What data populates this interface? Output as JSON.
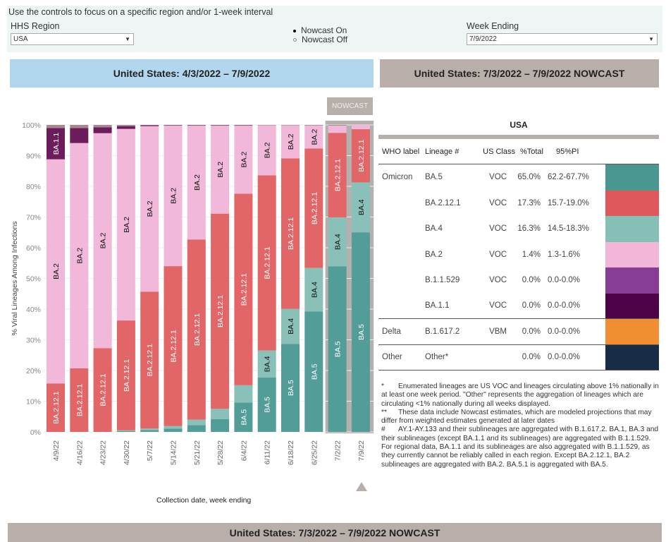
{
  "controls": {
    "intro": "Use the controls to focus on a specific region and/or 1-week interval",
    "region_label": "HHS Region",
    "region_value": "USA",
    "week_label": "Week Ending",
    "week_value": "7/9/2022",
    "nowcast_options": [
      {
        "label": "Nowcast On",
        "selected": true
      },
      {
        "label": "Nowcast Off",
        "selected": false
      }
    ]
  },
  "banners": {
    "left": "United States: 4/3/2022 – 7/9/2022",
    "right": "United States: 7/3/2022 – 7/9/2022 NOWCAST",
    "bottom": "United States: 7/3/2022 – 7/9/2022 NOWCAST"
  },
  "nowcast_tag": "NOWCAST",
  "chart_data": {
    "type": "bar",
    "stacked": true,
    "title": "United States: 4/3/2022 – 7/9/2022",
    "xlabel": "Collection date, week ending",
    "ylabel": "% Viral Lineages Among Infections",
    "ylim": [
      0,
      100
    ],
    "yticks": [
      "0%",
      "10%",
      "20%",
      "30%",
      "40%",
      "50%",
      "60%",
      "70%",
      "80%",
      "90%",
      "100%"
    ],
    "categories": [
      "4/9/22",
      "4/16/22",
      "4/23/22",
      "4/30/22",
      "5/7/22",
      "5/14/22",
      "5/21/22",
      "5/28/22",
      "6/4/22",
      "6/11/22",
      "6/18/22",
      "6/25/22",
      "7/2/22",
      "7/9/22"
    ],
    "nowcast_categories": [
      "7/2/22",
      "7/9/22"
    ],
    "series": [
      {
        "name": "BA.5",
        "color": "#529d98",
        "label_color": "#ffffff",
        "values": [
          0,
          0,
          0,
          0.3,
          0.6,
          1.1,
          2.2,
          4.2,
          9.6,
          17.7,
          28.7,
          39.2,
          53.9,
          65.0
        ]
      },
      {
        "name": "BA.4",
        "color": "#89c0b7",
        "label_color": "#111111",
        "values": [
          0,
          0,
          0,
          0.2,
          0.5,
          0.8,
          1.8,
          3.3,
          5.6,
          8.8,
          11.4,
          14.2,
          16.0,
          16.3
        ]
      },
      {
        "name": "BA.2.12.1",
        "color": "#e26568",
        "label_color": "#ffffff",
        "values": [
          15.8,
          20.7,
          27.3,
          35.8,
          44.6,
          52.1,
          58.7,
          63.6,
          62.4,
          57.1,
          49.0,
          38.9,
          27.5,
          17.3
        ]
      },
      {
        "name": "BA.2",
        "color": "#f1b8d9",
        "label_color": "#111111",
        "values": [
          73.0,
          73.4,
          70.0,
          62.4,
          53.9,
          45.8,
          37.1,
          28.7,
          22.2,
          16.3,
          10.8,
          7.5,
          2.4,
          1.4
        ]
      },
      {
        "name": "BA.1.1",
        "color": "#6c1c5b",
        "label_color": "#ffffff",
        "values": [
          10.2,
          4.9,
          1.9,
          0.9,
          0.3,
          0.1,
          0.1,
          0.1,
          0.1,
          0.0,
          0.0,
          0.0,
          0.0,
          0.0
        ]
      },
      {
        "name": "Other",
        "color": "#a7888c",
        "label_color": "#ffffff",
        "values": [
          1.0,
          1.0,
          0.8,
          0.4,
          0.1,
          0.1,
          0.1,
          0.1,
          0.1,
          0.1,
          0.1,
          0.2,
          0.2,
          0.0
        ]
      }
    ],
    "grid": true,
    "legend": "none"
  },
  "table": {
    "title": "USA",
    "headers": [
      "WHO label",
      "Lineage #",
      "US Class",
      "%Total",
      "95%PI"
    ],
    "rows": [
      {
        "who": "Omicron",
        "lineage": "BA.5",
        "class": "VOC",
        "total": "65.0%",
        "pi": "62.2-67.7%",
        "color": "#4a9792",
        "group_end": false
      },
      {
        "who": "",
        "lineage": "BA.2.12.1",
        "class": "VOC",
        "total": "17.3%",
        "pi": "15.7-19.0%",
        "color": "#e0575c",
        "group_end": false
      },
      {
        "who": "",
        "lineage": "BA.4",
        "class": "VOC",
        "total": "16.3%",
        "pi": "14.5-18.3%",
        "color": "#86bfb6",
        "group_end": false
      },
      {
        "who": "",
        "lineage": "BA.2",
        "class": "VOC",
        "total": "1.4%",
        "pi": "1.3-1.6%",
        "color": "#f1b6d8",
        "group_end": false
      },
      {
        "who": "",
        "lineage": "B.1.1.529",
        "class": "VOC",
        "total": "0.0%",
        "pi": "0.0-0.0%",
        "color": "#873d96",
        "group_end": false
      },
      {
        "who": "",
        "lineage": "BA.1.1",
        "class": "VOC",
        "total": "0.0%",
        "pi": "0.0-0.0%",
        "color": "#4e0247",
        "group_end": true
      },
      {
        "who": "Delta",
        "lineage": "B.1.617.2",
        "class": "VBM",
        "total": "0.0%",
        "pi": "0.0-0.0%",
        "color": "#f08e31",
        "group_end": true
      },
      {
        "who": "Other",
        "lineage": "Other*",
        "class": "",
        "total": "0.0%",
        "pi": "0.0-0.0%",
        "color": "#172d45",
        "group_end": true
      }
    ]
  },
  "notes": [
    {
      "sym": "*",
      "text": "Enumerated lineages are US VOC and lineages circulating above 1% nationally in at least one week period. \"Other\" represents the aggregation of lineages which are circulating <1% nationally during all weeks displayed."
    },
    {
      "sym": "**",
      "text": "These data include Nowcast estimates, which are modeled projections that may differ from weighted estimates generated at later dates"
    },
    {
      "sym": "#",
      "text": "AY.1-AY.133 and their sublineages are aggregated with B.1.617.2. BA.1, BA.3 and their sublineages (except BA.1.1 and its sublineages) are aggregated with B.1.1.529. For regional data, BA.1.1 and its sublineages are also aggregated with B.1.1.529, as they currently cannot be reliably called in each region. Except BA.2.12.1, BA.2 sublineages are aggregated with BA.2. BA.5.1 is aggregated with BA.5."
    }
  ]
}
